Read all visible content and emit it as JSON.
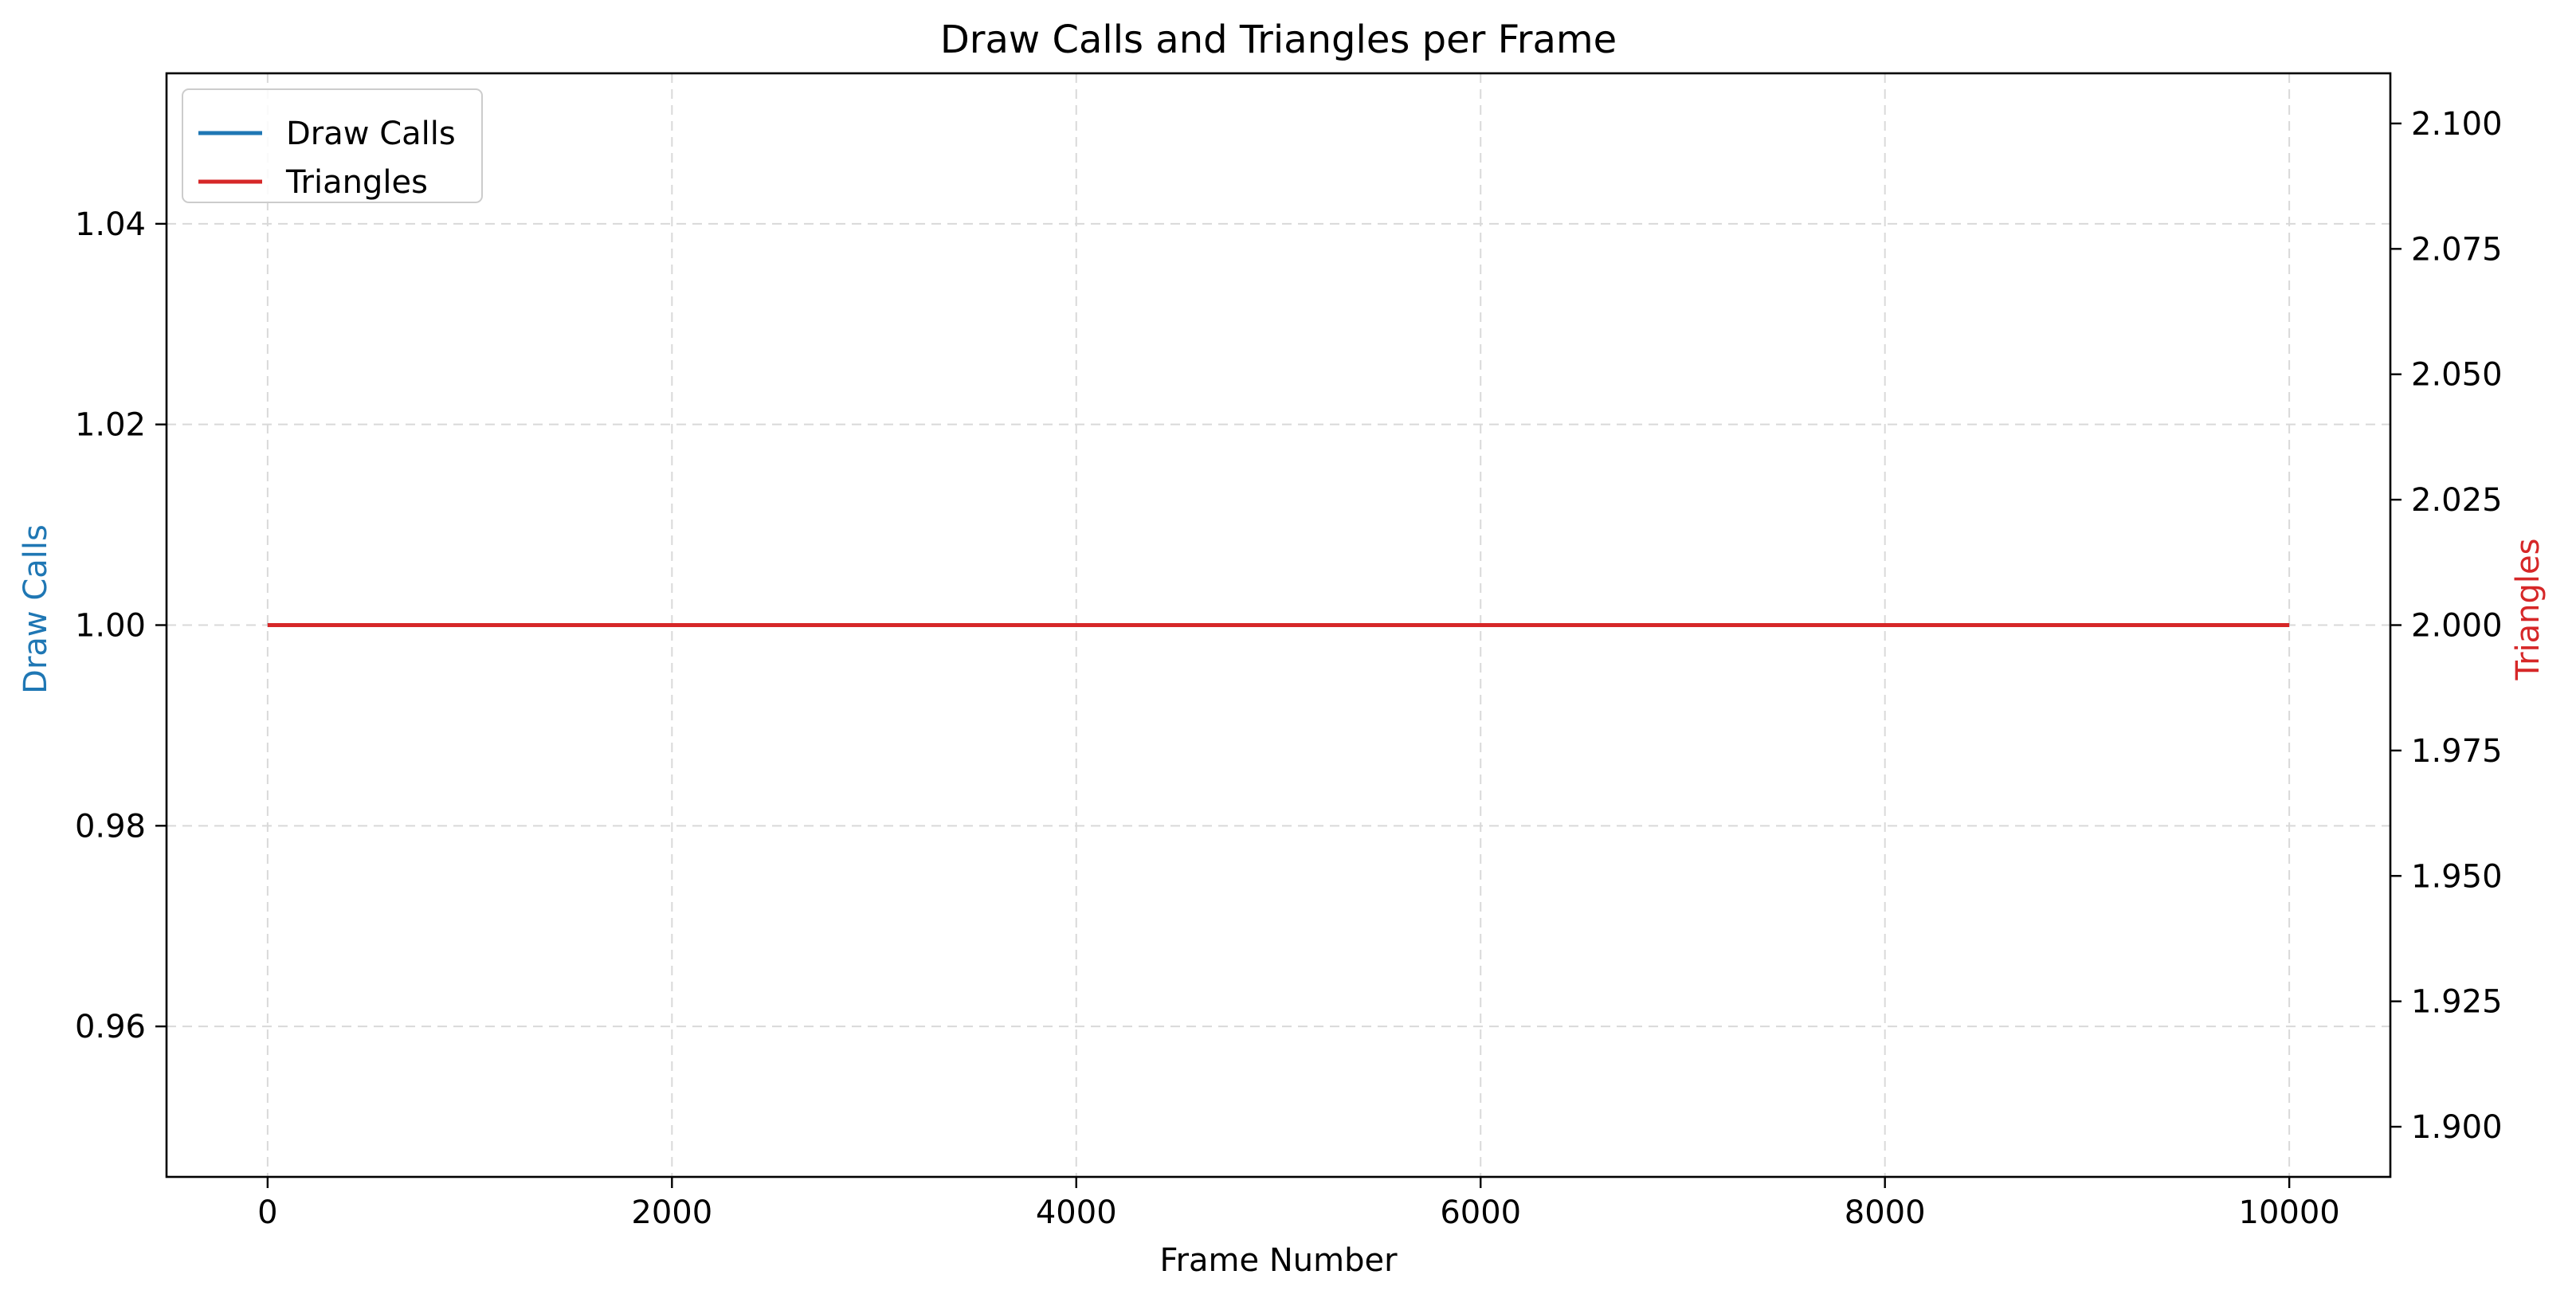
{
  "chart_data": {
    "type": "line",
    "title": "Draw Calls and Triangles per Frame",
    "xlabel": "Frame Number",
    "ylabel_left": "Draw Calls",
    "ylabel_right": "Triangles",
    "xlim": [
      -500,
      10500
    ],
    "ylim_left": [
      0.945,
      1.055
    ],
    "ylim_right": [
      1.89,
      2.11
    ],
    "x_ticks": [
      0,
      2000,
      4000,
      6000,
      8000,
      10000
    ],
    "x_tick_labels": [
      "0",
      "2000",
      "4000",
      "6000",
      "8000",
      "10000"
    ],
    "y_left_ticks": [
      0.96,
      0.98,
      1.0,
      1.02,
      1.04
    ],
    "y_left_tick_labels": [
      "0.96",
      "0.98",
      "1.00",
      "1.02",
      "1.04"
    ],
    "y_right_ticks": [
      1.9,
      1.925,
      1.95,
      1.975,
      2.0,
      2.025,
      2.05,
      2.075,
      2.1
    ],
    "y_right_tick_labels": [
      "1.900",
      "1.925",
      "1.950",
      "1.975",
      "2.000",
      "2.025",
      "2.050",
      "2.075",
      "2.100"
    ],
    "grid": true,
    "legend_position": "top-left",
    "series": [
      {
        "name": "Draw Calls",
        "axis": "left",
        "color": "#1f77b4",
        "x": [
          0,
          10000
        ],
        "y": [
          1,
          1
        ]
      },
      {
        "name": "Triangles",
        "axis": "right",
        "color": "#d62728",
        "x": [
          0,
          10000
        ],
        "y": [
          2,
          2
        ]
      }
    ]
  }
}
